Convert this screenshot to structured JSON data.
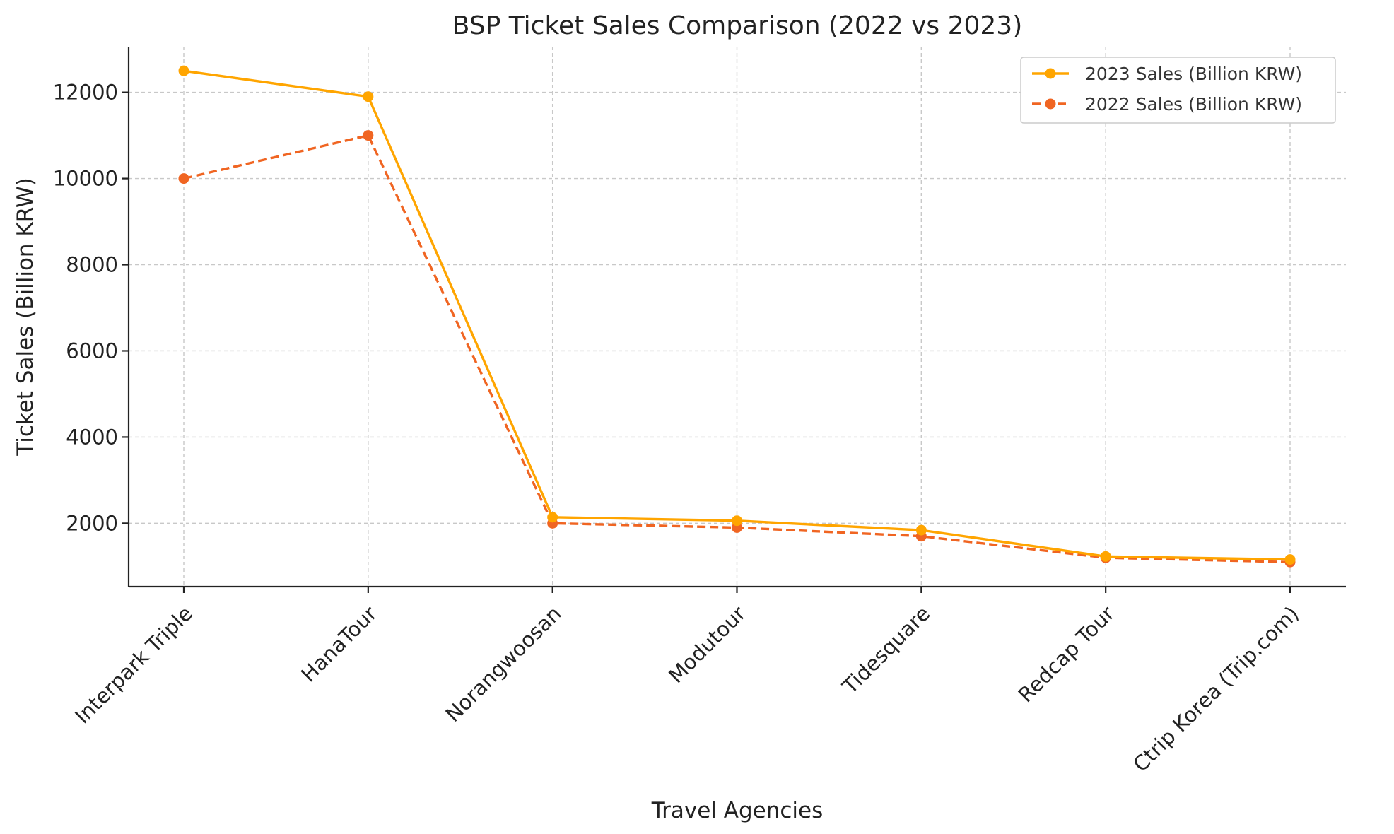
{
  "chart_data": {
    "type": "line",
    "title": "BSP Ticket Sales Comparison (2022 vs 2023)",
    "xlabel": "Travel Agencies",
    "ylabel": "Ticket Sales (Billion KRW)",
    "categories": [
      "Interpark Triple",
      "HanaTour",
      "Norangwoosan",
      "Modutour",
      "Tidesquare",
      "Redcap Tour",
      "Ctrip Korea (Trip.com)"
    ],
    "ylim": [
      530,
      13060
    ],
    "yticks": [
      2000,
      4000,
      6000,
      8000,
      10000,
      12000
    ],
    "grid": true,
    "legend_position": "top-right",
    "series": [
      {
        "name": "2023 Sales (Billion KRW)",
        "values": [
          12500,
          11900,
          2140,
          2060,
          1840,
          1230,
          1160
        ],
        "color": "#FFA500",
        "line_style": "solid",
        "marker": "circle"
      },
      {
        "name": "2022 Sales (Billion KRW)",
        "values": [
          10000,
          11000,
          2000,
          1900,
          1700,
          1200,
          1100
        ],
        "color": "#F06522",
        "line_style": "dashed",
        "marker": "circle"
      }
    ]
  }
}
